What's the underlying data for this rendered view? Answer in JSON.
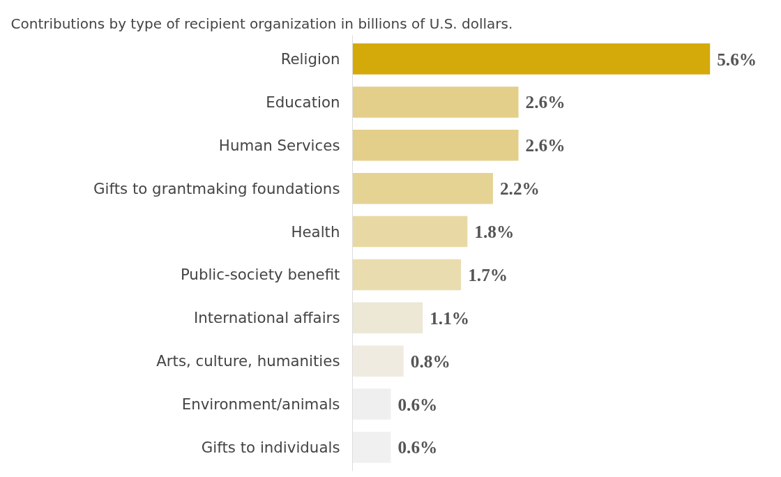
{
  "chart_data": {
    "type": "bar",
    "orientation": "horizontal",
    "title": "Contributions by type of recipient organization in billions of U.S. dollars.",
    "categories": [
      "Religion",
      "Education",
      "Human Services",
      "Gifts to grantmaking foundations",
      "Health",
      "Public-society benefit",
      "International affairs",
      "Arts, culture, humanities",
      "Environment/animals",
      "Gifts to individuals"
    ],
    "values": [
      5.6,
      2.6,
      2.6,
      2.2,
      1.8,
      1.7,
      1.1,
      0.8,
      0.6,
      0.6
    ],
    "value_labels": [
      "5.6%",
      "2.6%",
      "2.6%",
      "2.2%",
      "1.8%",
      "1.7%",
      "1.1%",
      "0.8%",
      "0.6%",
      "0.6%"
    ],
    "colors": [
      "#d4a90a",
      "#e3cf8a",
      "#e3cf8a",
      "#e5d394",
      "#e8d9a4",
      "#e9dcaf",
      "#ede7d6",
      "#efebe0",
      "#efefef",
      "#f0f0f0"
    ],
    "grid": false
  }
}
